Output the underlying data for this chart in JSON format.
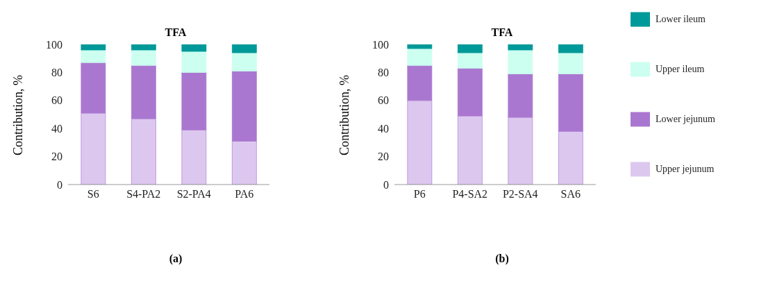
{
  "chart_data": [
    {
      "type": "bar",
      "title": "TFA",
      "ylabel": "Contribution, %",
      "categories": [
        "S6",
        "S4-PA2",
        "S2-PA4",
        "PA6"
      ],
      "stacked": true,
      "ylim": [
        0,
        100
      ],
      "yticks": [
        0,
        20,
        40,
        60,
        80,
        100
      ],
      "grid": false,
      "legend": false,
      "annotations": [
        "(a)"
      ],
      "series": [
        {
          "color": "#dcc8ee",
          "values": [
            51,
            47,
            39,
            31
          ]
        },
        {
          "color": "#aa77d0",
          "values": [
            36,
            38,
            41,
            50
          ]
        },
        {
          "color": "#ccfff0",
          "values": [
            9,
            11,
            15,
            13
          ]
        },
        {
          "color": "#009999",
          "values": [
            4,
            4,
            5,
            6
          ]
        }
      ]
    },
    {
      "type": "bar",
      "title": "TFA",
      "ylabel": "Contribution, %",
      "categories": [
        "P6",
        "P4-SA2",
        "P2-SA4",
        "SA6"
      ],
      "stacked": true,
      "ylim": [
        0,
        100
      ],
      "yticks": [
        0,
        20,
        40,
        60,
        80,
        100
      ],
      "grid": false,
      "legend": "right",
      "annotations": [
        "(b)"
      ],
      "series": [
        {
          "name": "Upper jejunum",
          "color": "#dcc8ee",
          "values": [
            60,
            49,
            48,
            38
          ]
        },
        {
          "name": "Lower jejunum",
          "color": "#aa77d0",
          "values": [
            25,
            34,
            31,
            41
          ]
        },
        {
          "name": "Upper ileum",
          "color": "#ccfff0",
          "values": [
            12,
            11,
            17,
            15
          ]
        },
        {
          "name": "Lower ileum",
          "color": "#009999",
          "values": [
            3,
            6,
            4,
            6
          ]
        }
      ]
    }
  ]
}
